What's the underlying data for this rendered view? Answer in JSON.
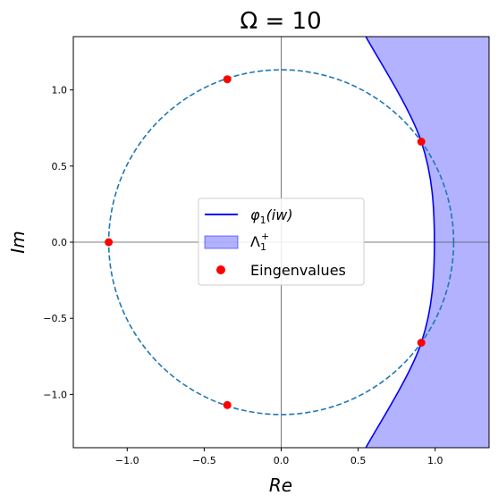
{
  "chart_data": {
    "type": "scatter",
    "title": "Ω = 10",
    "xlabel": "Re",
    "ylabel": "Im",
    "xlim": [
      -1.35,
      1.35
    ],
    "ylim": [
      -1.35,
      1.35
    ],
    "xticks": [
      -1.0,
      -0.5,
      0.0,
      0.5,
      1.0
    ],
    "xtick_labels": [
      "−1.0",
      "−0.5",
      "0.0",
      "0.5",
      "1.0"
    ],
    "yticks": [
      -1.0,
      -0.5,
      0.0,
      0.5,
      1.0
    ],
    "ytick_labels": [
      "−1.0",
      "−0.5",
      "0.0",
      "0.5",
      "1.0"
    ],
    "grid": false,
    "reference_lines": {
      "x": 0,
      "y": 0,
      "color": "#555555"
    },
    "circle": {
      "center": [
        0,
        0
      ],
      "radius": 1.12,
      "style": "dashed",
      "color": "#1f77b4"
    },
    "curve": {
      "name": "φ1(iw)",
      "color": "#0000ff",
      "vertex": [
        0.995,
        0
      ],
      "points": [
        [
          0.55,
          -1.35
        ],
        [
          0.91,
          -0.66
        ],
        [
          0.995,
          0
        ],
        [
          0.91,
          0.66
        ],
        [
          0.55,
          1.35
        ]
      ]
    },
    "region": {
      "name": "Λ1+",
      "color": "#0000ff",
      "opacity": 0.3,
      "side": "right of curve"
    },
    "series": [
      {
        "name": "Eingenvalues",
        "color": "#ff0000",
        "x": [
          -1.12,
          -0.35,
          -0.35,
          0.91,
          0.91
        ],
        "y": [
          0.0,
          1.07,
          -1.07,
          0.66,
          -0.66
        ]
      }
    ],
    "legend": {
      "position": "center",
      "entries": [
        {
          "label_main": "φ",
          "label_sub": "1",
          "label_rest": "(iw)",
          "marker": "line"
        },
        {
          "label_main": "Λ",
          "label_sub": "1",
          "label_sup": "+",
          "marker": "patch"
        },
        {
          "label_main": "Eingenvalues",
          "marker": "dot"
        }
      ]
    }
  }
}
